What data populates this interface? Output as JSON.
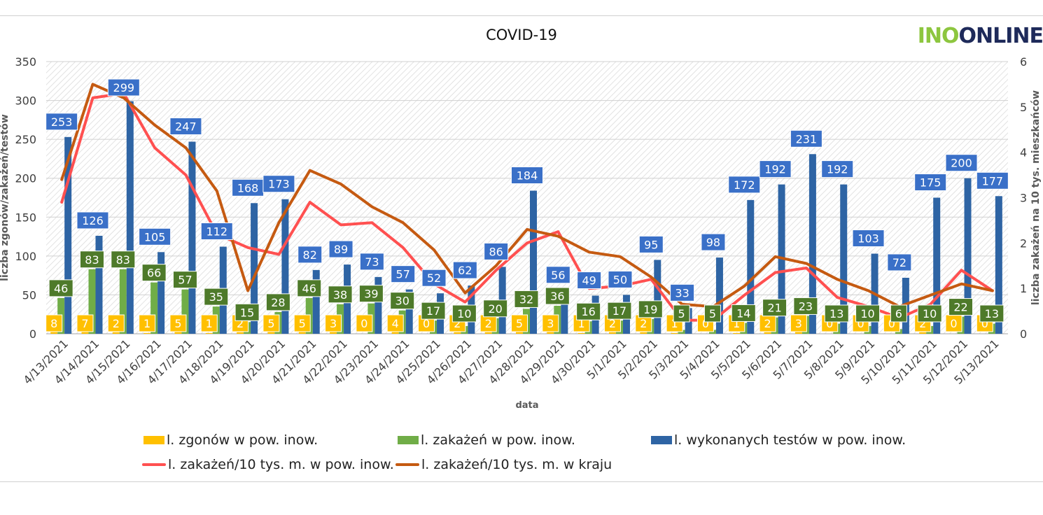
{
  "logo": {
    "part1": "INO",
    "part2": "ONLINE"
  },
  "chart_data": {
    "type": "bar",
    "title": "COVID-19",
    "xlabel": "data",
    "ylabel": "liczba zgonów/zakażeń/testów",
    "ylabel_right": "liczba zakażeń na 10 tys. mieszkańców",
    "ylim": [
      0,
      350
    ],
    "ylim_right": [
      0,
      6
    ],
    "yticks": [
      "0",
      "50",
      "100",
      "150",
      "200",
      "250",
      "300",
      "350"
    ],
    "yticks_right": [
      "0",
      "1",
      "2",
      "3",
      "4",
      "5",
      "6"
    ],
    "categories": [
      "4/13/2021",
      "4/14/2021",
      "4/15/2021",
      "4/16/2021",
      "4/17/2021",
      "4/18/2021",
      "4/19/2021",
      "4/20/2021",
      "4/21/2021",
      "4/22/2021",
      "4/23/2021",
      "4/24/2021",
      "4/25/2021",
      "4/26/2021",
      "4/27/2021",
      "4/28/2021",
      "4/29/2021",
      "4/30/2021",
      "5/1/2021",
      "5/2/2021",
      "5/3/2021",
      "5/4/2021",
      "5/5/2021",
      "5/6/2021",
      "5/7/2021",
      "5/8/2021",
      "5/9/2021",
      "5/10/2021",
      "5/11/2021",
      "5/12/2021",
      "5/13/2021"
    ],
    "series": [
      {
        "name": "l. zgonów w pow. inow.",
        "kind": "bar",
        "color": "#ffc000",
        "values": [
          8,
          7,
          2,
          1,
          5,
          1,
          2,
          5,
          5,
          3,
          0,
          4,
          0,
          2,
          2,
          5,
          3,
          1,
          2,
          2,
          1,
          0,
          1,
          2,
          3,
          0,
          0,
          0,
          2,
          0,
          0
        ]
      },
      {
        "name": "l. zakażeń w pow. inow.",
        "kind": "bar",
        "color": "#70ad47",
        "values": [
          46,
          83,
          83,
          66,
          57,
          35,
          15,
          28,
          46,
          38,
          39,
          30,
          17,
          10,
          20,
          32,
          36,
          16,
          17,
          19,
          5,
          5,
          14,
          21,
          23,
          13,
          10,
          6,
          10,
          22,
          13
        ]
      },
      {
        "name": "l. wykonanych testów w pow. inow.",
        "kind": "bar",
        "color": "#2e64a4",
        "values": [
          253,
          126,
          299,
          105,
          247,
          112,
          168,
          173,
          82,
          89,
          73,
          57,
          52,
          62,
          86,
          184,
          56,
          49,
          50,
          95,
          33,
          98,
          172,
          192,
          231,
          192,
          103,
          72,
          175,
          200,
          177
        ]
      },
      {
        "name": "l. zakażeń/10 tys. m. w pow. inow.",
        "kind": "line",
        "axis": "right",
        "color": "#ff5050",
        "values": [
          2.9,
          5.2,
          5.3,
          4.1,
          3.5,
          2.2,
          1.9,
          1.75,
          2.9,
          2.4,
          2.45,
          1.9,
          1.1,
          0.7,
          1.4,
          2.0,
          2.25,
          1.0,
          1.05,
          1.2,
          0.3,
          0.3,
          0.85,
          1.35,
          1.45,
          0.8,
          0.6,
          0.35,
          0.65,
          1.4,
          0.95
        ]
      },
      {
        "name": "l. zakażeń/10 tys. m. w kraju",
        "kind": "line",
        "axis": "right",
        "color": "#c55a11",
        "values": [
          3.4,
          5.5,
          5.2,
          4.6,
          4.1,
          3.15,
          0.95,
          2.45,
          3.6,
          3.3,
          2.8,
          2.45,
          1.85,
          0.9,
          1.5,
          2.3,
          2.15,
          1.8,
          1.7,
          1.25,
          0.65,
          0.6,
          1.05,
          1.7,
          1.55,
          1.2,
          0.95,
          0.6,
          0.85,
          1.1,
          0.95
        ]
      }
    ],
    "legend_position": "bottom"
  }
}
